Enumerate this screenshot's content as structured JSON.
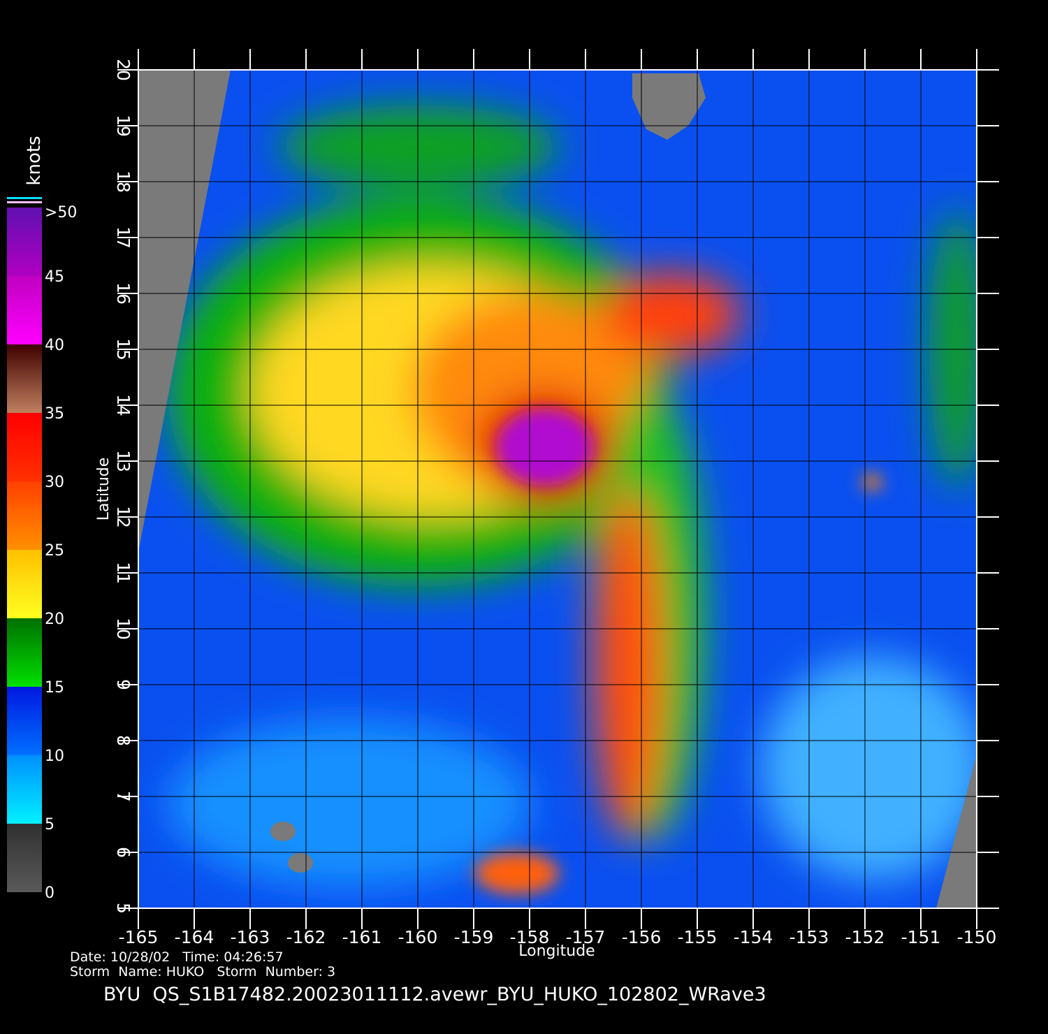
{
  "map": {
    "xlabel": "Longitude",
    "ylabel": "Latitude",
    "xlim": [
      -165,
      -150
    ],
    "ylim": [
      5,
      20
    ],
    "xticks": [
      -165,
      -164,
      -163,
      -162,
      -161,
      -160,
      -159,
      -158,
      -157,
      -156,
      -155,
      -154,
      -153,
      -152,
      -151,
      -150
    ],
    "yticks": [
      5,
      6,
      7,
      8,
      9,
      10,
      11,
      12,
      13,
      14,
      15,
      16,
      17,
      18,
      19,
      20
    ],
    "grid": true
  },
  "colorbar": {
    "title": "knots",
    "lim": [
      0,
      50
    ],
    "ticks": [
      0,
      5,
      10,
      15,
      20,
      25,
      30,
      35,
      40,
      45,
      {
        "value": 50,
        "label": ">50"
      }
    ],
    "colors": [
      [
        "#5a5a5a",
        "#303030"
      ],
      [
        "#00f0ff",
        "#0090ff"
      ],
      [
        "#0070ff",
        "#0018e0"
      ],
      [
        "#00e000",
        "#007000"
      ],
      [
        "#ffff20",
        "#ffc000"
      ],
      [
        "#ff9000",
        "#ff4000"
      ],
      [
        "#ff3000",
        "#ff0000"
      ],
      [
        "#c08060",
        "#400000"
      ],
      [
        "#ff00ff",
        "#c000c0"
      ],
      [
        "#b000c0",
        "#6010b0"
      ]
    ]
  },
  "footer": {
    "line1": "Date: 10/28/02   Time: 04:26:57",
    "line2": "Storm  Name: HUKO   Storm  Number: 3",
    "file": "BYU  QS_S1B17482.20023011112.avewr_BYU_HUKO_102802_WRave3"
  }
}
